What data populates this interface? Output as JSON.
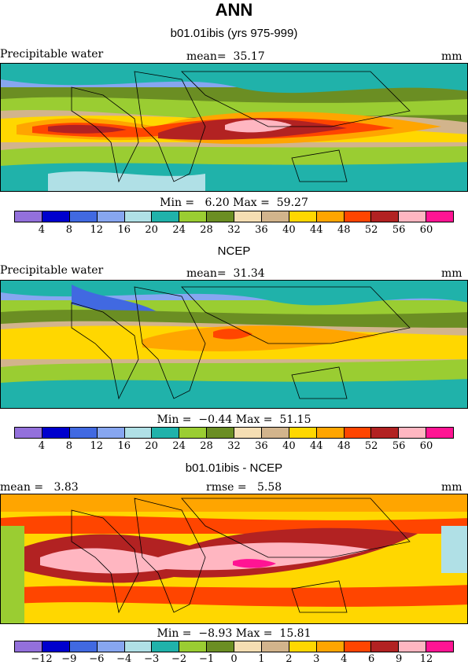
{
  "title": "ANN",
  "panels": [
    {
      "subtitle": "b01.01ibis (yrs 975-999)",
      "left_label": "Precipitable water",
      "center_label": "mean=  35.17",
      "right_label": "mm",
      "minmax": "Min =   6.20 Max =  59.27",
      "ticks": [
        "4",
        "8",
        "12",
        "16",
        "20",
        "24",
        "28",
        "32",
        "36",
        "40",
        "44",
        "48",
        "52",
        "56",
        "60"
      ]
    },
    {
      "subtitle": "NCEP",
      "left_label": "Precipitable water",
      "center_label": "mean=  31.34",
      "right_label": "mm",
      "minmax": "Min =  −0.44 Max =  51.15",
      "ticks": [
        "4",
        "8",
        "12",
        "16",
        "20",
        "24",
        "28",
        "32",
        "36",
        "40",
        "44",
        "48",
        "52",
        "56",
        "60"
      ]
    },
    {
      "subtitle": "b01.01ibis - NCEP",
      "left_label": "mean =   3.83",
      "center_label": "rmse =   5.58",
      "right_label": "mm",
      "minmax": "Min =  −8.93 Max =  15.81",
      "ticks": [
        "−12",
        "−9",
        "−6",
        "−4",
        "−3",
        "−2",
        "−1",
        "0",
        "1",
        "2",
        "3",
        "4",
        "6",
        "9",
        "12"
      ]
    }
  ],
  "colorbar_colors": [
    "#9370db",
    "#0000cd",
    "#4169e1",
    "#87a6f0",
    "#b0e0e6",
    "#20b2aa",
    "#9acd32",
    "#6b8e23",
    "#f5deb3",
    "#d2b48c",
    "#ffd700",
    "#ffa500",
    "#ff4500",
    "#b22222",
    "#ffb6c1",
    "#ff1493"
  ]
}
